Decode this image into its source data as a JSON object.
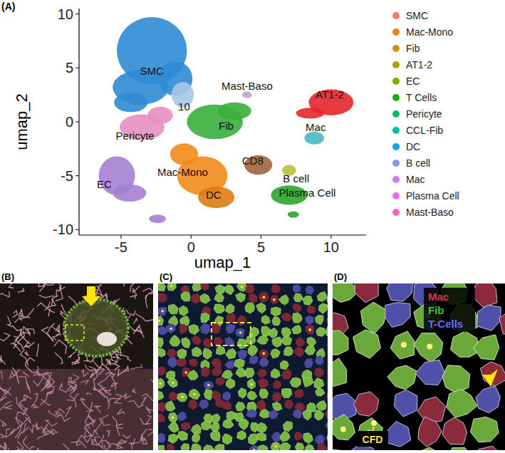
{
  "chart_data": {
    "type": "scatter",
    "panel_letter": "(A)",
    "x_label": "umap_1",
    "y_label": "umap_2",
    "xlim": [
      -8,
      12.5
    ],
    "ylim": [
      -10.5,
      10.5
    ],
    "xticks": [
      -5,
      0,
      5,
      10
    ],
    "yticks": [
      -10,
      -5,
      0,
      5,
      10
    ],
    "grid": false,
    "legend": "right",
    "series": [
      {
        "name": "SMC",
        "color": "#2f8bd3",
        "x": [
          -2.8,
          -3.6,
          -1.1,
          -4.3
        ],
        "y": [
          6.6,
          3.2,
          4.0,
          1.8
        ],
        "rx": [
          2.5,
          2.0,
          1.2,
          1.2
        ],
        "ry": [
          3.1,
          1.6,
          1.6,
          0.9
        ],
        "label_x": -2.8,
        "label_y": 4.7
      },
      {
        "name": "10",
        "color": "#a9c6e8",
        "x": [
          -0.6
        ],
        "y": [
          2.5
        ],
        "rx": [
          0.8
        ],
        "ry": [
          1.2
        ],
        "label_x": -0.5,
        "label_y": 1.4
      },
      {
        "name": "Pericyte",
        "color": "#e58fc2",
        "x": [
          -3.5,
          -2.2
        ],
        "y": [
          -0.5,
          0.6
        ],
        "rx": [
          1.6,
          0.9
        ],
        "ry": [
          1.2,
          0.8
        ],
        "label_x": -4.0,
        "label_y": -1.3
      },
      {
        "name": "EC",
        "color": "#a57fd1",
        "x": [
          -5.3,
          -4.4,
          -2.4
        ],
        "y": [
          -5.0,
          -6.6,
          -9.0
        ],
        "rx": [
          1.3,
          1.2,
          0.6
        ],
        "ry": [
          1.8,
          0.8,
          0.4
        ],
        "label_x": -6.2,
        "label_y": -5.8
      },
      {
        "name": "Fib",
        "color": "#3bae3b",
        "x": [
          1.7,
          3.1
        ],
        "y": [
          0.0,
          1.0
        ],
        "rx": [
          2.0,
          1.2
        ],
        "ry": [
          1.6,
          0.8
        ],
        "label_x": 2.5,
        "label_y": -0.4
      },
      {
        "name": "Mac-Mono",
        "color": "#f28a1a",
        "x": [
          0.8,
          -0.5
        ],
        "y": [
          -5.0,
          -3.0
        ],
        "rx": [
          1.8,
          1.0
        ],
        "ry": [
          1.8,
          1.0
        ],
        "label_x": -0.6,
        "label_y": -4.7
      },
      {
        "name": "DC",
        "color": "#e07b12",
        "x": [
          1.8
        ],
        "y": [
          -7.0
        ],
        "rx": [
          1.3
        ],
        "ry": [
          1.0
        ],
        "label_x": 1.6,
        "label_y": -6.8
      },
      {
        "name": "CD8",
        "color": "#a0643c",
        "x": [
          4.8
        ],
        "y": [
          -4.0
        ],
        "rx": [
          1.0
        ],
        "ry": [
          0.9
        ],
        "label_x": 4.4,
        "label_y": -3.6
      },
      {
        "name": "B cell",
        "color": "#b7c23a",
        "x": [
          7.0
        ],
        "y": [
          -4.5
        ],
        "rx": [
          0.5
        ],
        "ry": [
          0.5
        ],
        "label_x": 7.5,
        "label_y": -5.3
      },
      {
        "name": "Plasma Cell",
        "color": "#2aa62a",
        "x": [
          7.0,
          7.3
        ],
        "y": [
          -6.8,
          -8.6
        ],
        "rx": [
          1.3,
          0.4
        ],
        "ry": [
          0.9,
          0.3
        ],
        "label_x": 8.3,
        "label_y": -6.6
      },
      {
        "name": "Mast-Baso",
        "color": "#c4a3c9",
        "x": [
          4.0
        ],
        "y": [
          2.5
        ],
        "rx": [
          0.35
        ],
        "ry": [
          0.3
        ],
        "label_x": 4.0,
        "label_y": 3.3
      },
      {
        "name": "AT1-2",
        "color": "#e3262a",
        "x": [
          10.0,
          8.5
        ],
        "y": [
          1.8,
          0.8
        ],
        "rx": [
          1.6,
          1.0
        ],
        "ry": [
          1.2,
          0.5
        ],
        "label_x": 9.9,
        "label_y": 2.5
      },
      {
        "name": "Mac",
        "color": "#4bb8c3",
        "x": [
          8.8
        ],
        "y": [
          -1.5
        ],
        "rx": [
          0.7
        ],
        "ry": [
          0.6
        ],
        "label_x": 8.9,
        "label_y": -0.5
      }
    ],
    "legend_entries": [
      {
        "name": "SMC",
        "color": "#f8766d"
      },
      {
        "name": "Mac-Mono",
        "color": "#e68613"
      },
      {
        "name": "Fib",
        "color": "#cd9600"
      },
      {
        "name": "AT1-2",
        "color": "#aba300"
      },
      {
        "name": "EC",
        "color": "#7cae00"
      },
      {
        "name": "T Cells",
        "color": "#0cb702"
      },
      {
        "name": "Pericyte",
        "color": "#00be67"
      },
      {
        "name": "CCL-Fib",
        "color": "#00c19a"
      },
      {
        "name": "DC",
        "color": "#00a9ff"
      },
      {
        "name": "B cell",
        "color": "#8494ff"
      },
      {
        "name": "Mac",
        "color": "#c77cff"
      },
      {
        "name": "Plasma Cell",
        "color": "#ed68ed"
      },
      {
        "name": "Mast-Baso",
        "color": "#ff61c3"
      }
    ]
  },
  "panels": {
    "b": {
      "letter": "(B)"
    },
    "c": {
      "letter": "(C)"
    },
    "d": {
      "letter": "(D)",
      "labels": [
        {
          "text": "Mac",
          "color": "#e0303a"
        },
        {
          "text": "Fib",
          "color": "#3cc23c"
        },
        {
          "text": "T-Cells",
          "color": "#6a6aff"
        }
      ],
      "callout": {
        "text": "CFD",
        "color": "#ffe34a"
      }
    }
  }
}
